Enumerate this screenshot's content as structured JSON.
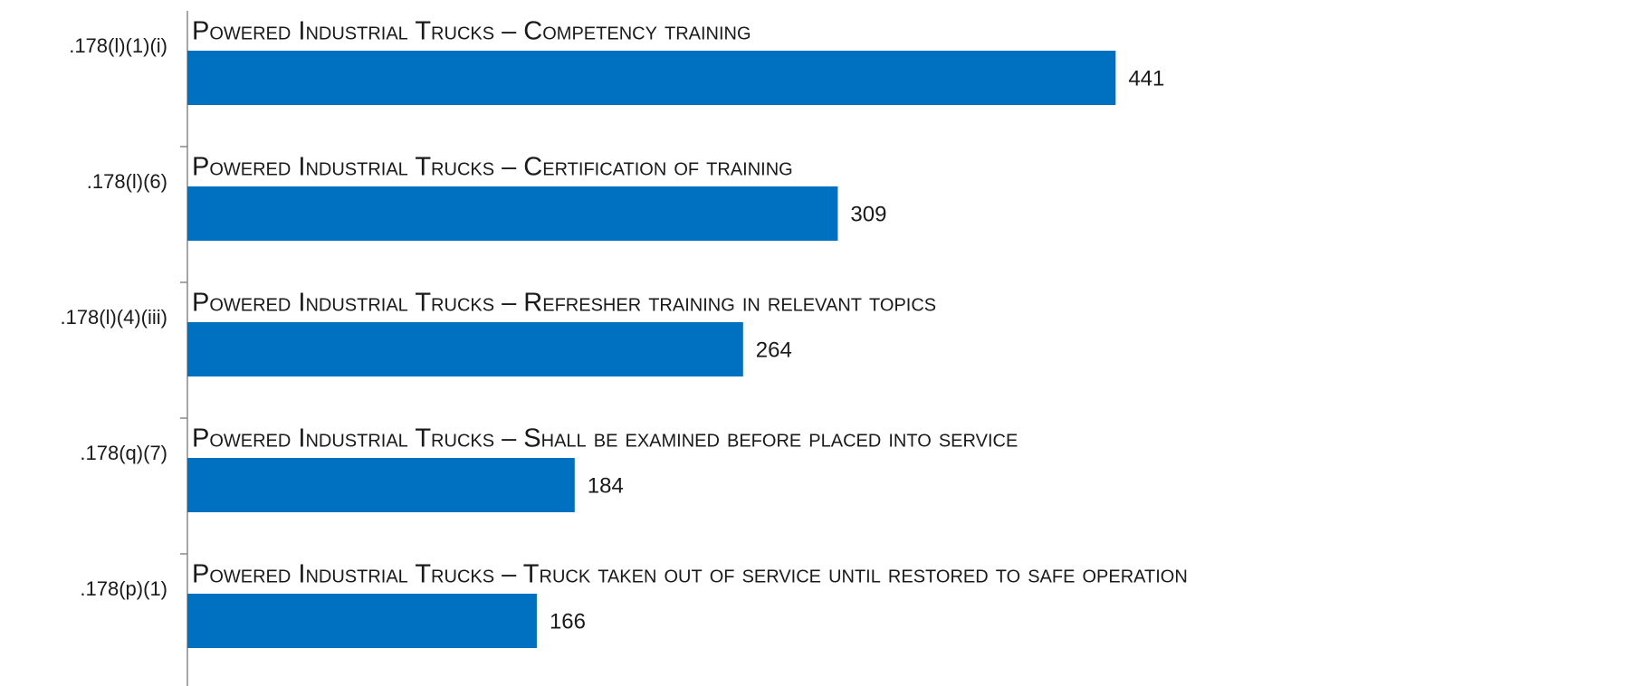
{
  "chart_data": {
    "type": "bar",
    "orientation": "horizontal",
    "categories": [
      ".178(l)(1)(i)",
      ".178(l)(6)",
      ".178(l)(4)(iii)",
      ".178(q)(7)",
      ".178(p)(1)"
    ],
    "annotations": [
      "Powered Industrial Trucks – Competency training",
      "Powered Industrial Trucks – Certification of training",
      "Powered Industrial Trucks – Refresher training in relevant topics",
      "Powered Industrial Trucks – Shall be examined before placed into service",
      "Powered Industrial Trucks – Truck taken out of service until restored to safe operation"
    ],
    "values": [
      441,
      309,
      264,
      184,
      166
    ],
    "color": "#0070c0"
  }
}
